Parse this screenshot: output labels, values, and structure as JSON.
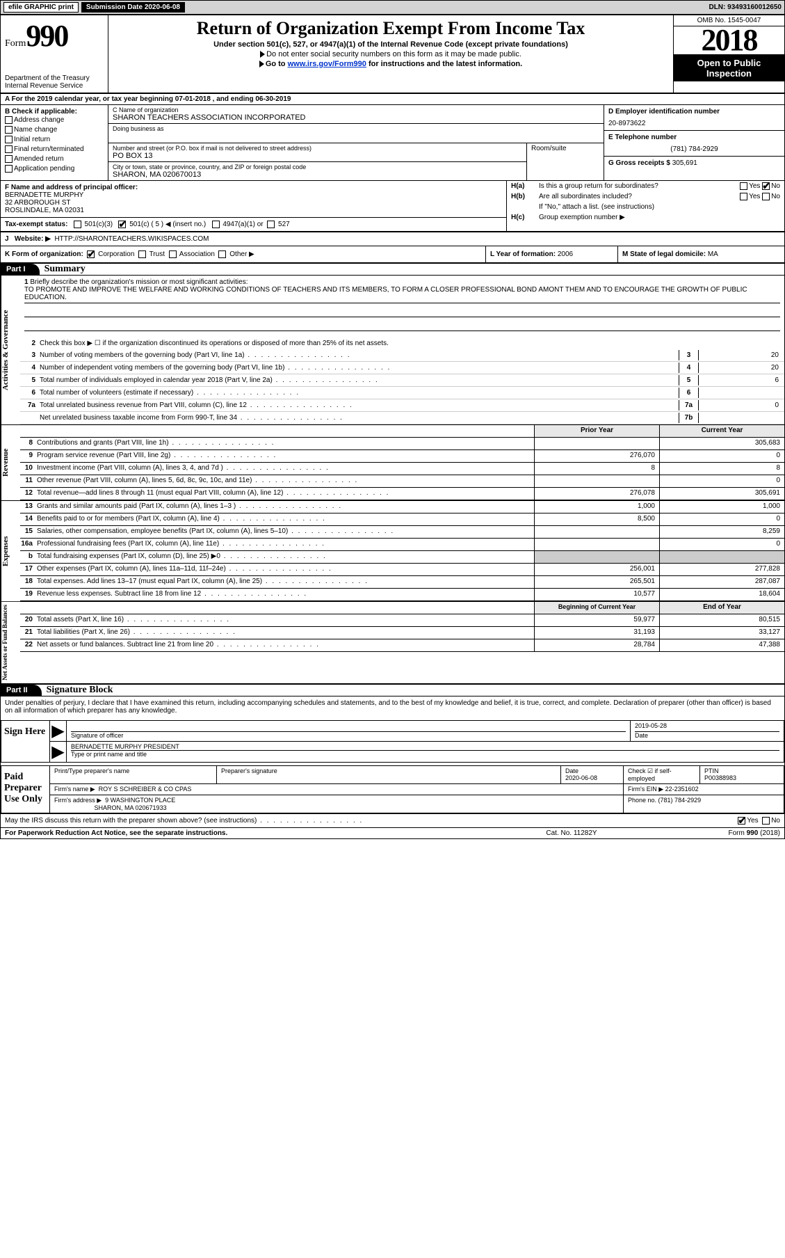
{
  "top": {
    "efile": "efile GRAPHIC print",
    "submission_label": "Submission Date ",
    "submission_date": "2020-06-08",
    "dln": "DLN: 93493160012650"
  },
  "header": {
    "form_word": "Form",
    "form_num": "990",
    "dept": "Department of the Treasury",
    "irs": "Internal Revenue Service",
    "title": "Return of Organization Exempt From Income Tax",
    "sub1": "Under section 501(c), 527, or 4947(a)(1) of the Internal Revenue Code (except private foundations)",
    "sub2": "Do not enter social security numbers on this form as it may be made public.",
    "sub3_pre": "Go to ",
    "sub3_link": "www.irs.gov/Form990",
    "sub3_post": " for instructions and the latest information.",
    "omb": "OMB No. 1545-0047",
    "year": "2018",
    "open1": "Open to Public",
    "open2": "Inspection"
  },
  "rowA": {
    "label": "A For the 2019 calendar year, or tax year beginning ",
    "begin": "07-01-2018",
    "mid": " , and ending ",
    "end": "06-30-2019"
  },
  "rowB": {
    "title": "B Check if applicable:",
    "addr_change": "Address change",
    "name_change": "Name change",
    "initial": "Initial return",
    "final": "Final return/terminated",
    "amended": "Amended return",
    "app_pending": "Application pending"
  },
  "rowC": {
    "name_label": "C Name of organization",
    "name": "SHARON TEACHERS ASSOCIATION INCORPORATED",
    "dba_label": "Doing business as",
    "street_label": "Number and street (or P.O. box if mail is not delivered to street address)",
    "room_label": "Room/suite",
    "street": "PO BOX 13",
    "city_label": "City or town, state or province, country, and ZIP or foreign postal code",
    "city": "SHARON, MA  020670013"
  },
  "rowD": {
    "label": "D Employer identification number",
    "ein": "20-8973622"
  },
  "rowE": {
    "label": "E Telephone number",
    "phone": "(781) 784-2929"
  },
  "rowG": {
    "label": "G Gross receipts $ ",
    "val": "305,691"
  },
  "rowF": {
    "label": "F Name and address of principal officer:",
    "name": "BERNADETTE MURPHY",
    "street": "32 ARBOROUGH ST",
    "city": "ROSLINDALE, MA  02031"
  },
  "rowH": {
    "a_label": "H(a)",
    "a_text": "Is this a group return for subordinates?",
    "b_label": "H(b)",
    "b_text": "Are all subordinates included?",
    "b_note": "If \"No,\" attach a list. (see instructions)",
    "c_label": "H(c)",
    "c_text": "Group exemption number ▶"
  },
  "rowI": {
    "label": "Tax-exempt status:",
    "c3": "501(c)(3)",
    "c5": "501(c) ( 5 ) ◀ (insert no.)",
    "a1": "4947(a)(1) or",
    "s527": "527"
  },
  "rowJ": {
    "label": "J",
    "text": "Website: ▶",
    "url": "HTTP://SHARONTEACHERS.WIKISPACES.COM"
  },
  "rowK": {
    "label": "K Form of organization:",
    "corp": "Corporation",
    "trust": "Trust",
    "assoc": "Association",
    "other": "Other ▶"
  },
  "rowL": {
    "label": "L Year of formation: ",
    "val": "2006"
  },
  "rowM": {
    "label": "M State of legal domicile: ",
    "val": "MA"
  },
  "part1": {
    "header": "Part I",
    "title": "Summary",
    "q1_label": "1",
    "q1_text": "Briefly describe the organization's mission or most significant activities:",
    "q1_val": "TO PROMOTE AND IMPROVE THE WELFARE AND WORKING CONDITIONS OF TEACHERS AND ITS MEMBERS, TO FORM A CLOSER PROFESSIONAL BOND AMONT THEM AND TO ENCOURAGE THE GROWTH OF PUBLIC EDUCATION.",
    "q2_label": "2",
    "q2_text": "Check this box ▶ ☐ if the organization discontinued its operations or disposed of more than 25% of its net assets.",
    "vtab_gov": "Activities & Governance",
    "vtab_rev": "Revenue",
    "vtab_exp": "Expenses",
    "vtab_net": "Net Assets or Fund Balances",
    "prior_hdr": "Prior Year",
    "current_hdr": "Current Year",
    "begin_hdr": "Beginning of Current Year",
    "end_hdr": "End of Year",
    "lines_gov": [
      {
        "n": "3",
        "t": "Number of voting members of the governing body (Part VI, line 1a)",
        "box": "3",
        "v": "20"
      },
      {
        "n": "4",
        "t": "Number of independent voting members of the governing body (Part VI, line 1b)",
        "box": "4",
        "v": "20"
      },
      {
        "n": "5",
        "t": "Total number of individuals employed in calendar year 2018 (Part V, line 2a)",
        "box": "5",
        "v": "6"
      },
      {
        "n": "6",
        "t": "Total number of volunteers (estimate if necessary)",
        "box": "6",
        "v": ""
      },
      {
        "n": "7a",
        "t": "Total unrelated business revenue from Part VIII, column (C), line 12",
        "box": "7a",
        "v": "0"
      },
      {
        "n": "",
        "t": "Net unrelated business taxable income from Form 990-T, line 34",
        "box": "7b",
        "v": ""
      },
      {
        "n": "b",
        "t": "",
        "box": "",
        "v": ""
      }
    ],
    "lines_rev": [
      {
        "n": "8",
        "t": "Contributions and grants (Part VIII, line 1h)",
        "p": "",
        "c": "305,683"
      },
      {
        "n": "9",
        "t": "Program service revenue (Part VIII, line 2g)",
        "p": "276,070",
        "c": "0"
      },
      {
        "n": "10",
        "t": "Investment income (Part VIII, column (A), lines 3, 4, and 7d )",
        "p": "8",
        "c": "8"
      },
      {
        "n": "11",
        "t": "Other revenue (Part VIII, column (A), lines 5, 6d, 8c, 9c, 10c, and 11e)",
        "p": "",
        "c": "0"
      },
      {
        "n": "12",
        "t": "Total revenue—add lines 8 through 11 (must equal Part VIII, column (A), line 12)",
        "p": "276,078",
        "c": "305,691"
      }
    ],
    "lines_exp": [
      {
        "n": "13",
        "t": "Grants and similar amounts paid (Part IX, column (A), lines 1–3 )",
        "p": "1,000",
        "c": "1,000"
      },
      {
        "n": "14",
        "t": "Benefits paid to or for members (Part IX, column (A), line 4)",
        "p": "8,500",
        "c": "0"
      },
      {
        "n": "15",
        "t": "Salaries, other compensation, employee benefits (Part IX, column (A), lines 5–10)",
        "p": "",
        "c": "8,259"
      },
      {
        "n": "16a",
        "t": "Professional fundraising fees (Part IX, column (A), line 11e)",
        "p": "",
        "c": "0"
      },
      {
        "n": "b",
        "t": "Total fundraising expenses (Part IX, column (D), line 25) ▶0",
        "p": "shaded",
        "c": "shaded"
      },
      {
        "n": "17",
        "t": "Other expenses (Part IX, column (A), lines 11a–11d, 11f–24e)",
        "p": "256,001",
        "c": "277,828"
      },
      {
        "n": "18",
        "t": "Total expenses. Add lines 13–17 (must equal Part IX, column (A), line 25)",
        "p": "265,501",
        "c": "287,087"
      },
      {
        "n": "19",
        "t": "Revenue less expenses. Subtract line 18 from line 12",
        "p": "10,577",
        "c": "18,604"
      }
    ],
    "lines_net": [
      {
        "n": "20",
        "t": "Total assets (Part X, line 16)",
        "p": "59,977",
        "c": "80,515"
      },
      {
        "n": "21",
        "t": "Total liabilities (Part X, line 26)",
        "p": "31,193",
        "c": "33,127"
      },
      {
        "n": "22",
        "t": "Net assets or fund balances. Subtract line 21 from line 20",
        "p": "28,784",
        "c": "47,388"
      }
    ]
  },
  "part2": {
    "header": "Part II",
    "title": "Signature Block",
    "declaration": "Under penalties of perjury, I declare that I have examined this return, including accompanying schedules and statements, and to the best of my knowledge and belief, it is true, correct, and complete. Declaration of preparer (other than officer) is based on all information of which preparer has any knowledge.",
    "sign_here": "Sign Here",
    "sig_officer": "Signature of officer",
    "sig_date": "Date",
    "sig_date_val": "2019-05-28",
    "sig_name": "BERNADETTE MURPHY PRESIDENT",
    "sig_name_label": "Type or print name and title",
    "paid_prep": "Paid Preparer Use Only",
    "prep_name_label": "Print/Type preparer's name",
    "prep_sig_label": "Preparer's signature",
    "prep_date_label": "Date",
    "prep_date_val": "2020-06-08",
    "check_self": "Check ☑ if self-employed",
    "ptin_label": "PTIN",
    "ptin": "P00388983",
    "firm_name_label": "Firm's name    ▶",
    "firm_name": "ROY S SCHREIBER & CO CPAS",
    "firm_ein_label": "Firm's EIN ▶ ",
    "firm_ein": "22-2351602",
    "firm_addr_label": "Firm's address ▶",
    "firm_addr1": "9 WASHINGTON PLACE",
    "firm_addr2": "SHARON, MA  020671933",
    "firm_phone_label": "Phone no. ",
    "firm_phone": "(781) 784-2929",
    "may_discuss": "May the IRS discuss this return with the preparer shown above? (see instructions)"
  },
  "footer": {
    "left": "For Paperwork Reduction Act Notice, see the separate instructions.",
    "mid": "Cat. No. 11282Y",
    "right_pre": "Form ",
    "right_form": "990",
    "right_post": " (2018)"
  },
  "yes": "Yes",
  "no": "No"
}
